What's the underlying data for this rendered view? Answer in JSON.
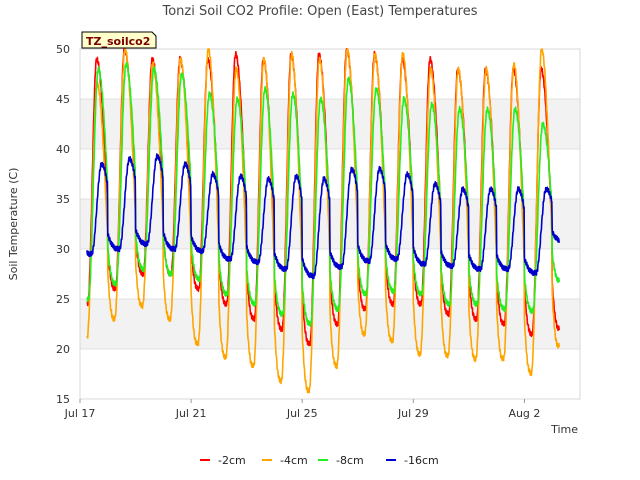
{
  "chart_data": {
    "type": "line",
    "title": "Tonzi Soil CO2 Profile: Open (East) Temperatures",
    "xlabel": "Time",
    "ylabel": "Soil Temperature (C)",
    "tag": "TZ_soilco2",
    "ylim": [
      15,
      50
    ],
    "yticks": [
      "15",
      "20",
      "25",
      "30",
      "35",
      "40",
      "45",
      "50"
    ],
    "xlim": [
      "2020-07-17",
      "2020-08-04"
    ],
    "xticks": [
      "Jul 17",
      "Jul 21",
      "Jul 25",
      "Jul 29",
      "Aug 2"
    ],
    "grid": "horizontal bands",
    "legend_position": "bottom",
    "days": [
      "Jul 17",
      "Jul 18",
      "Jul 19",
      "Jul 20",
      "Jul 21",
      "Jul 22",
      "Jul 23",
      "Jul 24",
      "Jul 25",
      "Jul 26",
      "Jul 27",
      "Jul 28",
      "Jul 29",
      "Jul 30",
      "Jul 31",
      "Aug 1",
      "Aug 2",
      "Aug 3"
    ],
    "series": [
      {
        "name": "-2cm",
        "color": "#ff0000",
        "daily_min": [
          24.6,
          26.0,
          27.5,
          27.5,
          26.0,
          24.5,
          23.0,
          22.0,
          20.5,
          22.5,
          24.0,
          24.5,
          24.5,
          23.5,
          23.0,
          22.5,
          21.5,
          22.0
        ],
        "daily_max": [
          49.0,
          50.0,
          49.0,
          49.0,
          49.0,
          49.5,
          49.0,
          49.5,
          49.5,
          50.0,
          49.5,
          49.0,
          49.0,
          48.0,
          48.0,
          48.0,
          48.0,
          47.5
        ]
      },
      {
        "name": "-4cm",
        "color": "#ffa500",
        "daily_min": [
          21.0,
          23.0,
          24.3,
          23.0,
          20.5,
          19.2,
          18.3,
          16.8,
          15.8,
          18.3,
          21.5,
          20.8,
          19.5,
          19.3,
          19.0,
          19.0,
          17.6,
          20.3
        ],
        "daily_max": [
          50.0,
          50.0,
          48.5,
          49.0,
          50.0,
          48.0,
          49.0,
          49.5,
          49.0,
          50.0,
          49.5,
          49.5,
          48.0,
          48.0,
          48.0,
          48.5,
          50.0,
          50.0
        ],
        "first_max": 46.5
      },
      {
        "name": "-8cm",
        "color": "#22ee22",
        "daily_min": [
          25.0,
          26.5,
          28.0,
          27.5,
          27.0,
          25.5,
          24.5,
          23.5,
          22.5,
          24.0,
          25.5,
          25.8,
          25.5,
          24.5,
          24.5,
          24.0,
          23.8,
          26.8
        ],
        "daily_max": [
          48.0,
          48.5,
          48.0,
          47.5,
          45.5,
          45.0,
          46.0,
          45.5,
          45.0,
          47.0,
          46.0,
          45.0,
          44.5,
          44.0,
          44.0,
          44.0,
          42.5,
          42.5
        ],
        "first_max": 48.0
      },
      {
        "name": "-16cm",
        "color": "#0000cc",
        "daily_min": [
          29.5,
          30.0,
          30.5,
          30.0,
          29.8,
          29.0,
          28.7,
          28.0,
          27.3,
          28.2,
          28.8,
          29.0,
          28.5,
          28.3,
          28.0,
          28.0,
          27.6,
          30.8
        ],
        "daily_max": [
          38.5,
          39.0,
          39.3,
          38.5,
          37.5,
          37.3,
          37.0,
          37.3,
          37.0,
          38.0,
          38.0,
          37.5,
          36.5,
          36.0,
          36.0,
          36.0,
          36.0,
          35.3
        ]
      }
    ]
  }
}
